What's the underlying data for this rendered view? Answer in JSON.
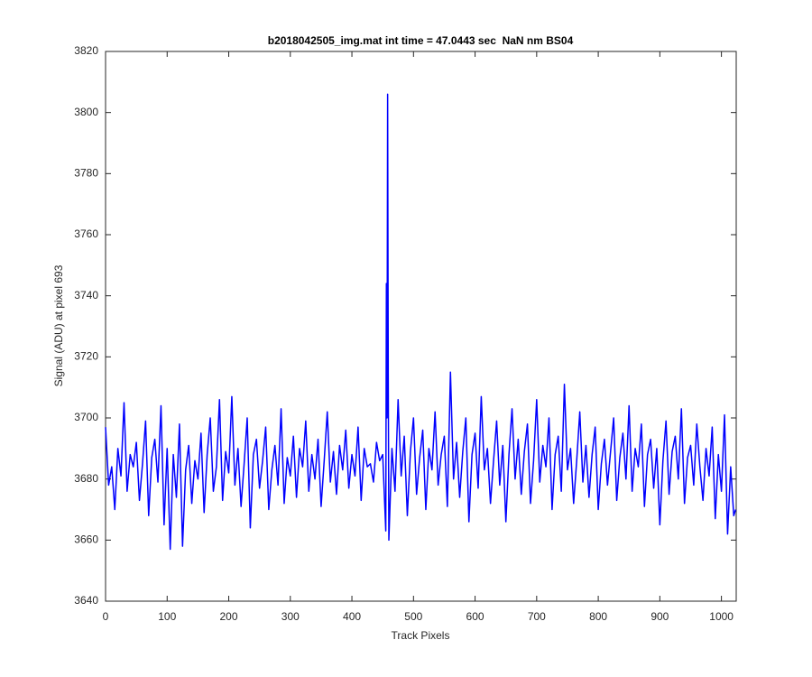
{
  "chart_data": {
    "type": "line",
    "title": "b2018042505_img.mat int time = 47.0443 sec  NaN nm BS04",
    "xlabel": "Track Pixels",
    "ylabel": "Signal (ADU) at pixel 693",
    "x": [
      0,
      5,
      10,
      15,
      20,
      25,
      30,
      35,
      40,
      45,
      50,
      55,
      60,
      65,
      70,
      75,
      80,
      85,
      90,
      95,
      100,
      105,
      110,
      115,
      120,
      125,
      130,
      135,
      140,
      145,
      150,
      155,
      160,
      165,
      170,
      175,
      180,
      185,
      190,
      195,
      200,
      205,
      210,
      215,
      220,
      225,
      230,
      235,
      240,
      245,
      250,
      255,
      260,
      265,
      270,
      275,
      280,
      285,
      290,
      295,
      300,
      305,
      310,
      315,
      320,
      325,
      330,
      335,
      340,
      345,
      350,
      355,
      360,
      365,
      370,
      375,
      380,
      385,
      390,
      395,
      400,
      405,
      410,
      415,
      420,
      425,
      430,
      435,
      440,
      445,
      450,
      455,
      456,
      457,
      458,
      459,
      460,
      465,
      470,
      475,
      480,
      485,
      490,
      495,
      500,
      505,
      510,
      515,
      520,
      525,
      530,
      535,
      540,
      545,
      550,
      555,
      560,
      565,
      570,
      575,
      580,
      585,
      590,
      595,
      600,
      605,
      610,
      615,
      620,
      625,
      630,
      635,
      640,
      645,
      650,
      655,
      660,
      665,
      670,
      675,
      680,
      685,
      690,
      695,
      700,
      705,
      710,
      715,
      720,
      725,
      730,
      735,
      740,
      745,
      750,
      755,
      760,
      765,
      770,
      775,
      780,
      785,
      790,
      795,
      800,
      805,
      810,
      815,
      820,
      825,
      830,
      835,
      840,
      845,
      850,
      855,
      860,
      865,
      870,
      875,
      880,
      885,
      890,
      895,
      900,
      905,
      910,
      915,
      920,
      925,
      930,
      935,
      940,
      945,
      950,
      955,
      960,
      965,
      970,
      975,
      980,
      985,
      990,
      995,
      1000,
      1005,
      1010,
      1015,
      1020,
      1023
    ],
    "series": [
      {
        "color": "#0000ff",
        "values": [
          3697,
          3678,
          3684,
          3670,
          3690,
          3681,
          3705,
          3676,
          3688,
          3684,
          3692,
          3673,
          3685,
          3699,
          3668,
          3687,
          3693,
          3679,
          3704,
          3665,
          3690,
          3657,
          3688,
          3674,
          3698,
          3658,
          3683,
          3691,
          3672,
          3686,
          3680,
          3695,
          3669,
          3688,
          3700,
          3676,
          3684,
          3706,
          3673,
          3689,
          3682,
          3707,
          3678,
          3690,
          3671,
          3685,
          3700,
          3664,
          3688,
          3693,
          3677,
          3686,
          3697,
          3670,
          3683,
          3691,
          3678,
          3703,
          3672,
          3687,
          3681,
          3694,
          3674,
          3690,
          3684,
          3699,
          3676,
          3688,
          3680,
          3693,
          3671,
          3686,
          3702,
          3679,
          3689,
          3675,
          3691,
          3683,
          3696,
          3677,
          3688,
          3681,
          3697,
          3673,
          3690,
          3684,
          3685,
          3679,
          3692,
          3686,
          3688,
          3663,
          3744,
          3700,
          3806,
          3715,
          3660,
          3690,
          3676,
          3706,
          3681,
          3694,
          3668,
          3689,
          3700,
          3675,
          3687,
          3696,
          3670,
          3690,
          3683,
          3702,
          3678,
          3688,
          3694,
          3671,
          3715,
          3680,
          3692,
          3674,
          3689,
          3700,
          3666,
          3688,
          3695,
          3677,
          3707,
          3683,
          3690,
          3672,
          3686,
          3699,
          3678,
          3691,
          3666,
          3688,
          3703,
          3680,
          3693,
          3675,
          3689,
          3698,
          3672,
          3686,
          3706,
          3679,
          3691,
          3684,
          3700,
          3670,
          3688,
          3694,
          3676,
          3711,
          3683,
          3690,
          3672,
          3686,
          3702,
          3679,
          3691,
          3674,
          3688,
          3697,
          3670,
          3685,
          3693,
          3678,
          3689,
          3700,
          3673,
          3687,
          3695,
          3680,
          3704,
          3676,
          3690,
          3684,
          3698,
          3671,
          3688,
          3693,
          3677,
          3690,
          3665,
          3686,
          3699,
          3675,
          3689,
          3694,
          3680,
          3703,
          3672,
          3687,
          3691,
          3678,
          3698,
          3684,
          3673,
          3690,
          3681,
          3697,
          3667,
          3688,
          3676,
          3701,
          3662,
          3684,
          3668,
          3670
        ]
      }
    ],
    "xlim": [
      0,
      1024
    ],
    "ylim": [
      3640,
      3820
    ],
    "xticks": [
      0,
      100,
      200,
      300,
      400,
      500,
      600,
      700,
      800,
      900,
      1000
    ],
    "yticks": [
      3640,
      3660,
      3680,
      3700,
      3720,
      3740,
      3760,
      3780,
      3800,
      3820
    ],
    "grid": false
  }
}
